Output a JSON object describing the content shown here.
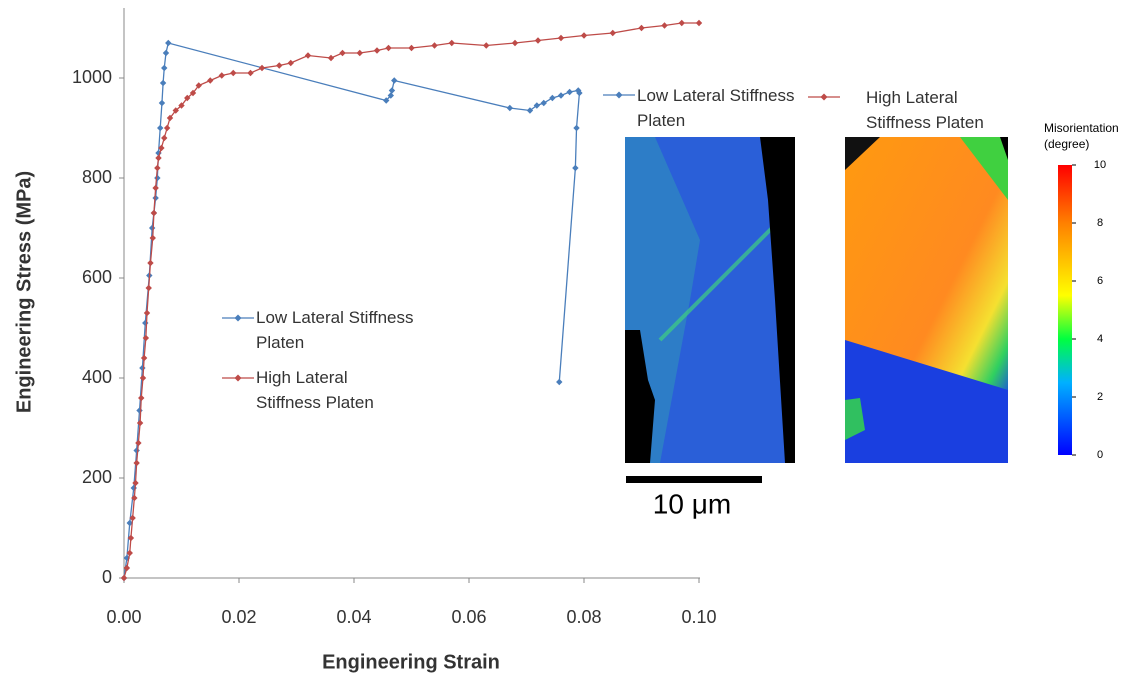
{
  "chart_data": {
    "type": "scatter",
    "x_label": "Engineering Strain",
    "y_label": "Engineering Stress (MPa)",
    "xlim": [
      0,
      0.1
    ],
    "ylim": [
      0,
      1140
    ],
    "xticks": [
      {
        "value": 0,
        "label": "0.00"
      },
      {
        "value": 0.02,
        "label": "0.02"
      },
      {
        "value": 0.04,
        "label": "0.04"
      },
      {
        "value": 0.06,
        "label": "0.06"
      },
      {
        "value": 0.08,
        "label": "0.08"
      },
      {
        "value": 0.1,
        "label": "0.10"
      }
    ],
    "yticks": [
      0,
      200,
      400,
      600,
      800,
      1000
    ],
    "series": [
      {
        "name": "Low Lateral Stiffness Platen",
        "color": "#4a7ebb",
        "x": [
          0,
          0.0005,
          0.001,
          0.0017,
          0.0022,
          0.0027,
          0.0032,
          0.0037,
          0.0044,
          0.0049,
          0.0052,
          0.0055,
          0.0058,
          0.006,
          0.0063,
          0.0066,
          0.0068,
          0.007,
          0.0073,
          0.0077,
          0.0456,
          0.0464,
          0.0466,
          0.047,
          0.0671,
          0.0706,
          0.0718,
          0.073,
          0.0745,
          0.076,
          0.0775,
          0.079,
          0.0792,
          0.0787,
          0.0785,
          0.0757
        ],
        "values": [
          0,
          40,
          110,
          180,
          255,
          335,
          420,
          510,
          605,
          700,
          730,
          760,
          800,
          850,
          900,
          950,
          990,
          1020,
          1050,
          1070,
          955,
          965,
          975,
          995,
          940,
          935,
          945,
          950,
          960,
          965,
          972,
          975,
          970,
          900,
          820,
          392
        ]
      },
      {
        "name": "High Lateral Stiffness Platen",
        "color": "#be4b48",
        "x": [
          0,
          0.0005,
          0.001,
          0.0012,
          0.0015,
          0.0018,
          0.002,
          0.0022,
          0.0025,
          0.0028,
          0.003,
          0.0033,
          0.0035,
          0.0038,
          0.004,
          0.0043,
          0.0046,
          0.005,
          0.0052,
          0.0055,
          0.0058,
          0.006,
          0.0065,
          0.007,
          0.0075,
          0.008,
          0.009,
          0.01,
          0.011,
          0.012,
          0.013,
          0.015,
          0.017,
          0.019,
          0.022,
          0.024,
          0.027,
          0.029,
          0.032,
          0.036,
          0.038,
          0.041,
          0.044,
          0.046,
          0.05,
          0.054,
          0.057,
          0.063,
          0.068,
          0.072,
          0.076,
          0.08,
          0.085,
          0.09,
          0.094,
          0.097,
          0.1
        ],
        "values": [
          0,
          20,
          50,
          80,
          120,
          160,
          190,
          230,
          270,
          310,
          360,
          400,
          440,
          480,
          530,
          580,
          630,
          680,
          730,
          780,
          820,
          840,
          860,
          880,
          900,
          920,
          935,
          945,
          960,
          970,
          985,
          995,
          1005,
          1010,
          1010,
          1020,
          1025,
          1030,
          1045,
          1040,
          1050,
          1050,
          1055,
          1060,
          1060,
          1065,
          1070,
          1065,
          1070,
          1075,
          1080,
          1085,
          1090,
          1100,
          1105,
          1110,
          1110
        ]
      }
    ],
    "colorbar": {
      "label": "Misorientation (degree)",
      "lim": [
        0,
        10
      ],
      "ticks": [
        0,
        2,
        4,
        6,
        8,
        10
      ]
    },
    "scale_bar_label": "10 μm"
  }
}
